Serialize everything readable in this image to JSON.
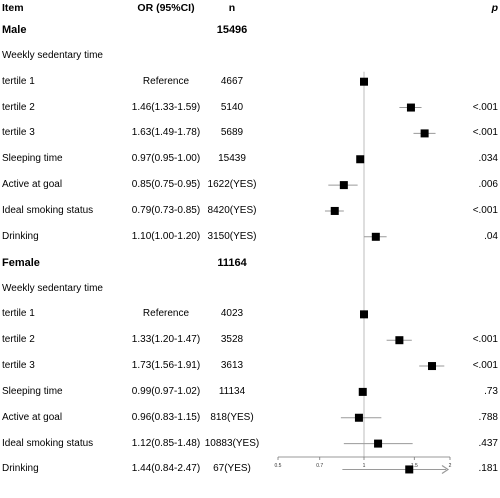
{
  "header": {
    "item": "Item",
    "or": "OR (95%CI)",
    "n": "n",
    "p": "p"
  },
  "rows": [
    {
      "kind": "group",
      "item": "Male",
      "n": "15496"
    },
    {
      "kind": "subheader",
      "item": "Weekly sedentary time"
    },
    {
      "kind": "data",
      "item": "tertile 1",
      "or": "Reference",
      "n": "4667",
      "p": "",
      "est": 1.0,
      "lo": 1.0,
      "hi": 1.0
    },
    {
      "kind": "data",
      "item": "tertile 2",
      "or": "1.46(1.33-1.59)",
      "n": "5140",
      "p": "<.001",
      "est": 1.46,
      "lo": 1.33,
      "hi": 1.59
    },
    {
      "kind": "data",
      "item": "tertile 3",
      "or": "1.63(1.49-1.78)",
      "n": "5689",
      "p": "<.001",
      "est": 1.63,
      "lo": 1.49,
      "hi": 1.78
    },
    {
      "kind": "data",
      "item": "Sleeping time",
      "or": "0.97(0.95-1.00)",
      "n": "15439",
      "p": ".034",
      "est": 0.97,
      "lo": 0.95,
      "hi": 1.0
    },
    {
      "kind": "data",
      "item": "Active at goal",
      "or": "0.85(0.75-0.95)",
      "n": "1622(YES)",
      "p": ".006",
      "est": 0.85,
      "lo": 0.75,
      "hi": 0.95
    },
    {
      "kind": "data",
      "item": "Ideal smoking status",
      "or": "0.79(0.73-0.85)",
      "n": "8420(YES)",
      "p": "<.001",
      "est": 0.79,
      "lo": 0.73,
      "hi": 0.85
    },
    {
      "kind": "data",
      "item": "Drinking",
      "or": "1.10(1.00-1.20)",
      "n": "3150(YES)",
      "p": ".04",
      "est": 1.1,
      "lo": 1.0,
      "hi": 1.2
    },
    {
      "kind": "group",
      "item": "Female",
      "n": "11164"
    },
    {
      "kind": "subheader",
      "item": "Weekly sedentary time"
    },
    {
      "kind": "data",
      "item": "tertile 1",
      "or": "Reference",
      "n": "4023",
      "p": "",
      "est": 1.0,
      "lo": 1.0,
      "hi": 1.0
    },
    {
      "kind": "data",
      "item": "tertile 2",
      "or": "1.33(1.20-1.47)",
      "n": "3528",
      "p": "<.001",
      "est": 1.33,
      "lo": 1.2,
      "hi": 1.47
    },
    {
      "kind": "data",
      "item": "tertile 3",
      "or": "1.73(1.56-1.91)",
      "n": "3613",
      "p": "<.001",
      "est": 1.73,
      "lo": 1.56,
      "hi": 1.91
    },
    {
      "kind": "data",
      "item": "Sleeping time",
      "or": "0.99(0.97-1.02)",
      "n": "11134",
      "p": ".73",
      "est": 0.99,
      "lo": 0.97,
      "hi": 1.02
    },
    {
      "kind": "data",
      "item": "Active at goal",
      "or": "0.96(0.83-1.15)",
      "n": "818(YES)",
      "p": ".788",
      "est": 0.96,
      "lo": 0.83,
      "hi": 1.15
    },
    {
      "kind": "data",
      "item": "Ideal smoking status",
      "or": "1.12(0.85-1.48)",
      "n": "10883(YES)",
      "p": ".437",
      "est": 1.12,
      "lo": 0.85,
      "hi": 1.48
    },
    {
      "kind": "data",
      "item": "Drinking",
      "or": "1.44(0.84-2.47)",
      "n": "67(YES)",
      "p": ".181",
      "est": 1.44,
      "lo": 0.84,
      "hi": 2.47,
      "arrow": true
    }
  ],
  "chart_data": {
    "type": "forest",
    "reference_line": 1,
    "xlim": [
      0.5,
      2
    ],
    "x_ticks": [
      0.5,
      0.7,
      1,
      1.5,
      2
    ],
    "x_tick_labels": [
      "0.5",
      "0.7",
      "1",
      "1.5",
      "2"
    ],
    "colors": {
      "marker": "#000000",
      "ci": "#9a9a9a",
      "ref": "#bcbcbc",
      "arrow": "#9a9a9a"
    }
  }
}
